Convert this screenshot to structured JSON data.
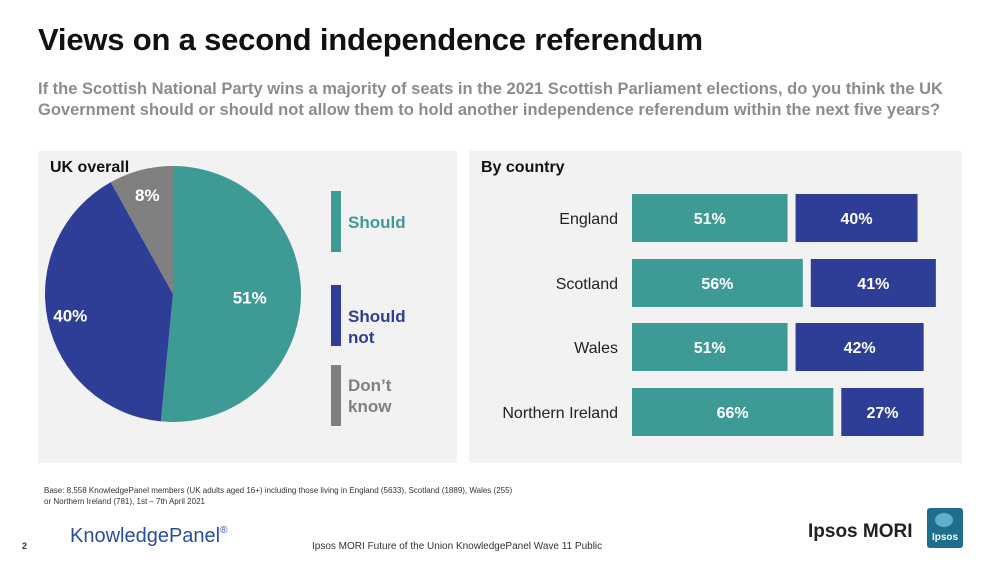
{
  "header": {
    "title": "Views on a second independence referendum",
    "subtitle": "If the Scottish National Party wins a majority of seats in the 2021 Scottish Parliament elections, do you think the UK Government should or should not allow them to hold another independence referendum within the next five years?"
  },
  "colors": {
    "should": "#3d9a95",
    "should_not": "#2e3e96",
    "dont_know": "#808080"
  },
  "chart_data": [
    {
      "type": "pie",
      "title": "UK overall",
      "categories": [
        "Should",
        "Should not",
        "Don’t know"
      ],
      "values": [
        51,
        40,
        8
      ],
      "labels": [
        "51%",
        "40%",
        "8%"
      ]
    },
    {
      "type": "bar",
      "title": "By country",
      "categories": [
        "England",
        "Scotland",
        "Wales",
        "Northern Ireland"
      ],
      "series": [
        {
          "name": "Should",
          "values": [
            51,
            56,
            51,
            66
          ],
          "labels": [
            "51%",
            "56%",
            "51%",
            "66%"
          ]
        },
        {
          "name": "Should not",
          "values": [
            40,
            41,
            42,
            27
          ],
          "labels": [
            "40%",
            "41%",
            "42%",
            "27%"
          ]
        }
      ]
    }
  ],
  "legend": {
    "items": [
      "Should",
      "Should not",
      "Don’t\nknow"
    ]
  },
  "footer": {
    "base_note": "Base: 8,558 KnowledgePanel members (UK adults aged 16+) including those living in England (5633), Scotland (1889), Wales (255) or Northern Ireland (781), 1st – 7th April 2021",
    "page_number": "2",
    "kp_logo_text": "KnowledgePanel",
    "kp_logo_mark": "®",
    "source_text": "Ipsos MORI Future of the Union KnowledgePanel Wave 11 Public",
    "ipsos_text": "Ipsos MORI",
    "badge_text": "Ipsos"
  }
}
